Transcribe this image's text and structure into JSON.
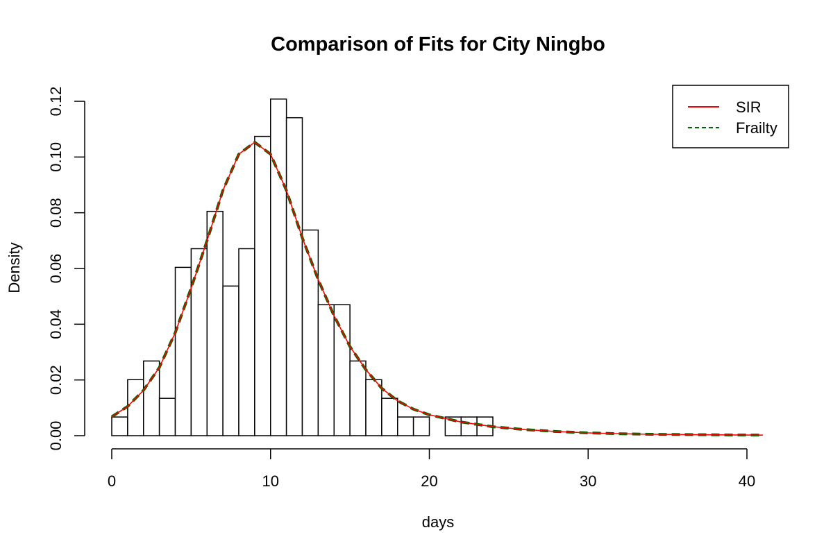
{
  "chart_data": {
    "type": "histogram",
    "title": "Comparison of Fits for City Ningbo",
    "xlabel": "days",
    "ylabel": "Density",
    "xlim": [
      0,
      41
    ],
    "ylim": [
      0,
      0.12
    ],
    "x_ticks": [
      0,
      10,
      20,
      30,
      40
    ],
    "x_tick_labels": [
      "0",
      "10",
      "20",
      "30",
      "40"
    ],
    "y_ticks": [
      0,
      0.02,
      0.04,
      0.06,
      0.08,
      0.1,
      0.12
    ],
    "y_tick_labels": [
      "0.00",
      "0.02",
      "0.04",
      "0.06",
      "0.08",
      "0.10",
      "0.12"
    ],
    "bin_width": 1,
    "bin_start": 0,
    "bars": [
      0.0067,
      0.0201,
      0.0268,
      0.0134,
      0.0604,
      0.0671,
      0.0805,
      0.0537,
      0.0671,
      0.1074,
      0.1208,
      0.1141,
      0.0738,
      0.047,
      0.047,
      0.0268,
      0.0201,
      0.0134,
      0.0067,
      0.0067,
      0,
      0.0067,
      0.0067,
      0.0067
    ],
    "series": [
      {
        "name": "SIR",
        "color": "#ff0000",
        "style": "solid",
        "x": [
          0,
          1,
          2,
          3,
          4,
          5,
          6,
          7,
          8,
          9,
          10,
          11,
          12,
          13,
          14,
          15,
          16,
          17,
          18,
          19,
          20,
          22,
          24,
          26,
          28,
          30,
          32,
          34,
          36,
          38,
          41
        ],
        "y": [
          0.0068,
          0.0105,
          0.0163,
          0.0245,
          0.037,
          0.053,
          0.07,
          0.088,
          0.101,
          0.1053,
          0.101,
          0.088,
          0.071,
          0.056,
          0.043,
          0.032,
          0.0237,
          0.017,
          0.0125,
          0.0095,
          0.0075,
          0.0049,
          0.0032,
          0.0022,
          0.0015,
          0.001,
          0.0007,
          0.0005,
          0.0004,
          0.0003,
          0.0002
        ]
      },
      {
        "name": "Frailty",
        "color": "#006400",
        "style": "dashed",
        "x": [
          0,
          1,
          2,
          3,
          4,
          5,
          6,
          7,
          8,
          9,
          10,
          11,
          12,
          13,
          14,
          15,
          16,
          17,
          18,
          19,
          20,
          22,
          24,
          26,
          28,
          30,
          32,
          34,
          36,
          38,
          41
        ],
        "y": [
          0.0068,
          0.0105,
          0.0163,
          0.0245,
          0.037,
          0.053,
          0.07,
          0.088,
          0.101,
          0.1053,
          0.101,
          0.088,
          0.071,
          0.056,
          0.043,
          0.032,
          0.0237,
          0.017,
          0.0125,
          0.0095,
          0.0075,
          0.0049,
          0.0032,
          0.0022,
          0.0015,
          0.001,
          0.0007,
          0.0005,
          0.0004,
          0.0003,
          0.0002
        ]
      }
    ],
    "legend": {
      "position": "top-right",
      "entries": [
        {
          "label": "SIR",
          "color": "#ff0000",
          "style": "solid"
        },
        {
          "label": "Frailty",
          "color": "#006400",
          "style": "dashed"
        }
      ]
    },
    "grid": false
  }
}
